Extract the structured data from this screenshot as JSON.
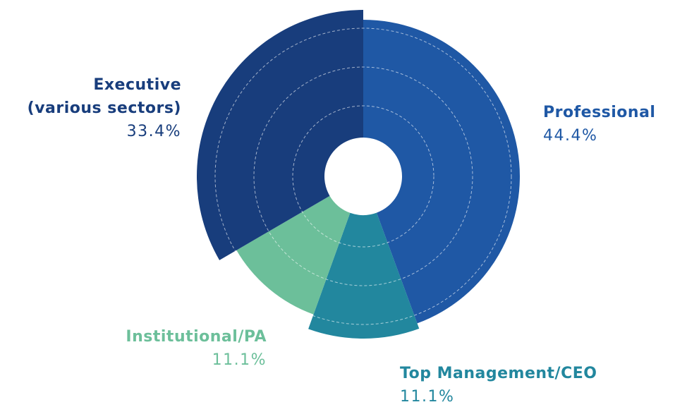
{
  "chart_data": {
    "type": "polar-area",
    "categories": [
      "Professional",
      "Top Management/CEO",
      "Institutional/PA",
      "Executive\n(various sectors)"
    ],
    "values": [
      44.4,
      11.1,
      11.1,
      33.4
    ],
    "value_labels": [
      "44.4%",
      "11.1%",
      "11.1%",
      "33.4%"
    ],
    "colors": [
      "#1f58a5",
      "#22879e",
      "#6cbf9a",
      "#183d7c"
    ]
  }
}
